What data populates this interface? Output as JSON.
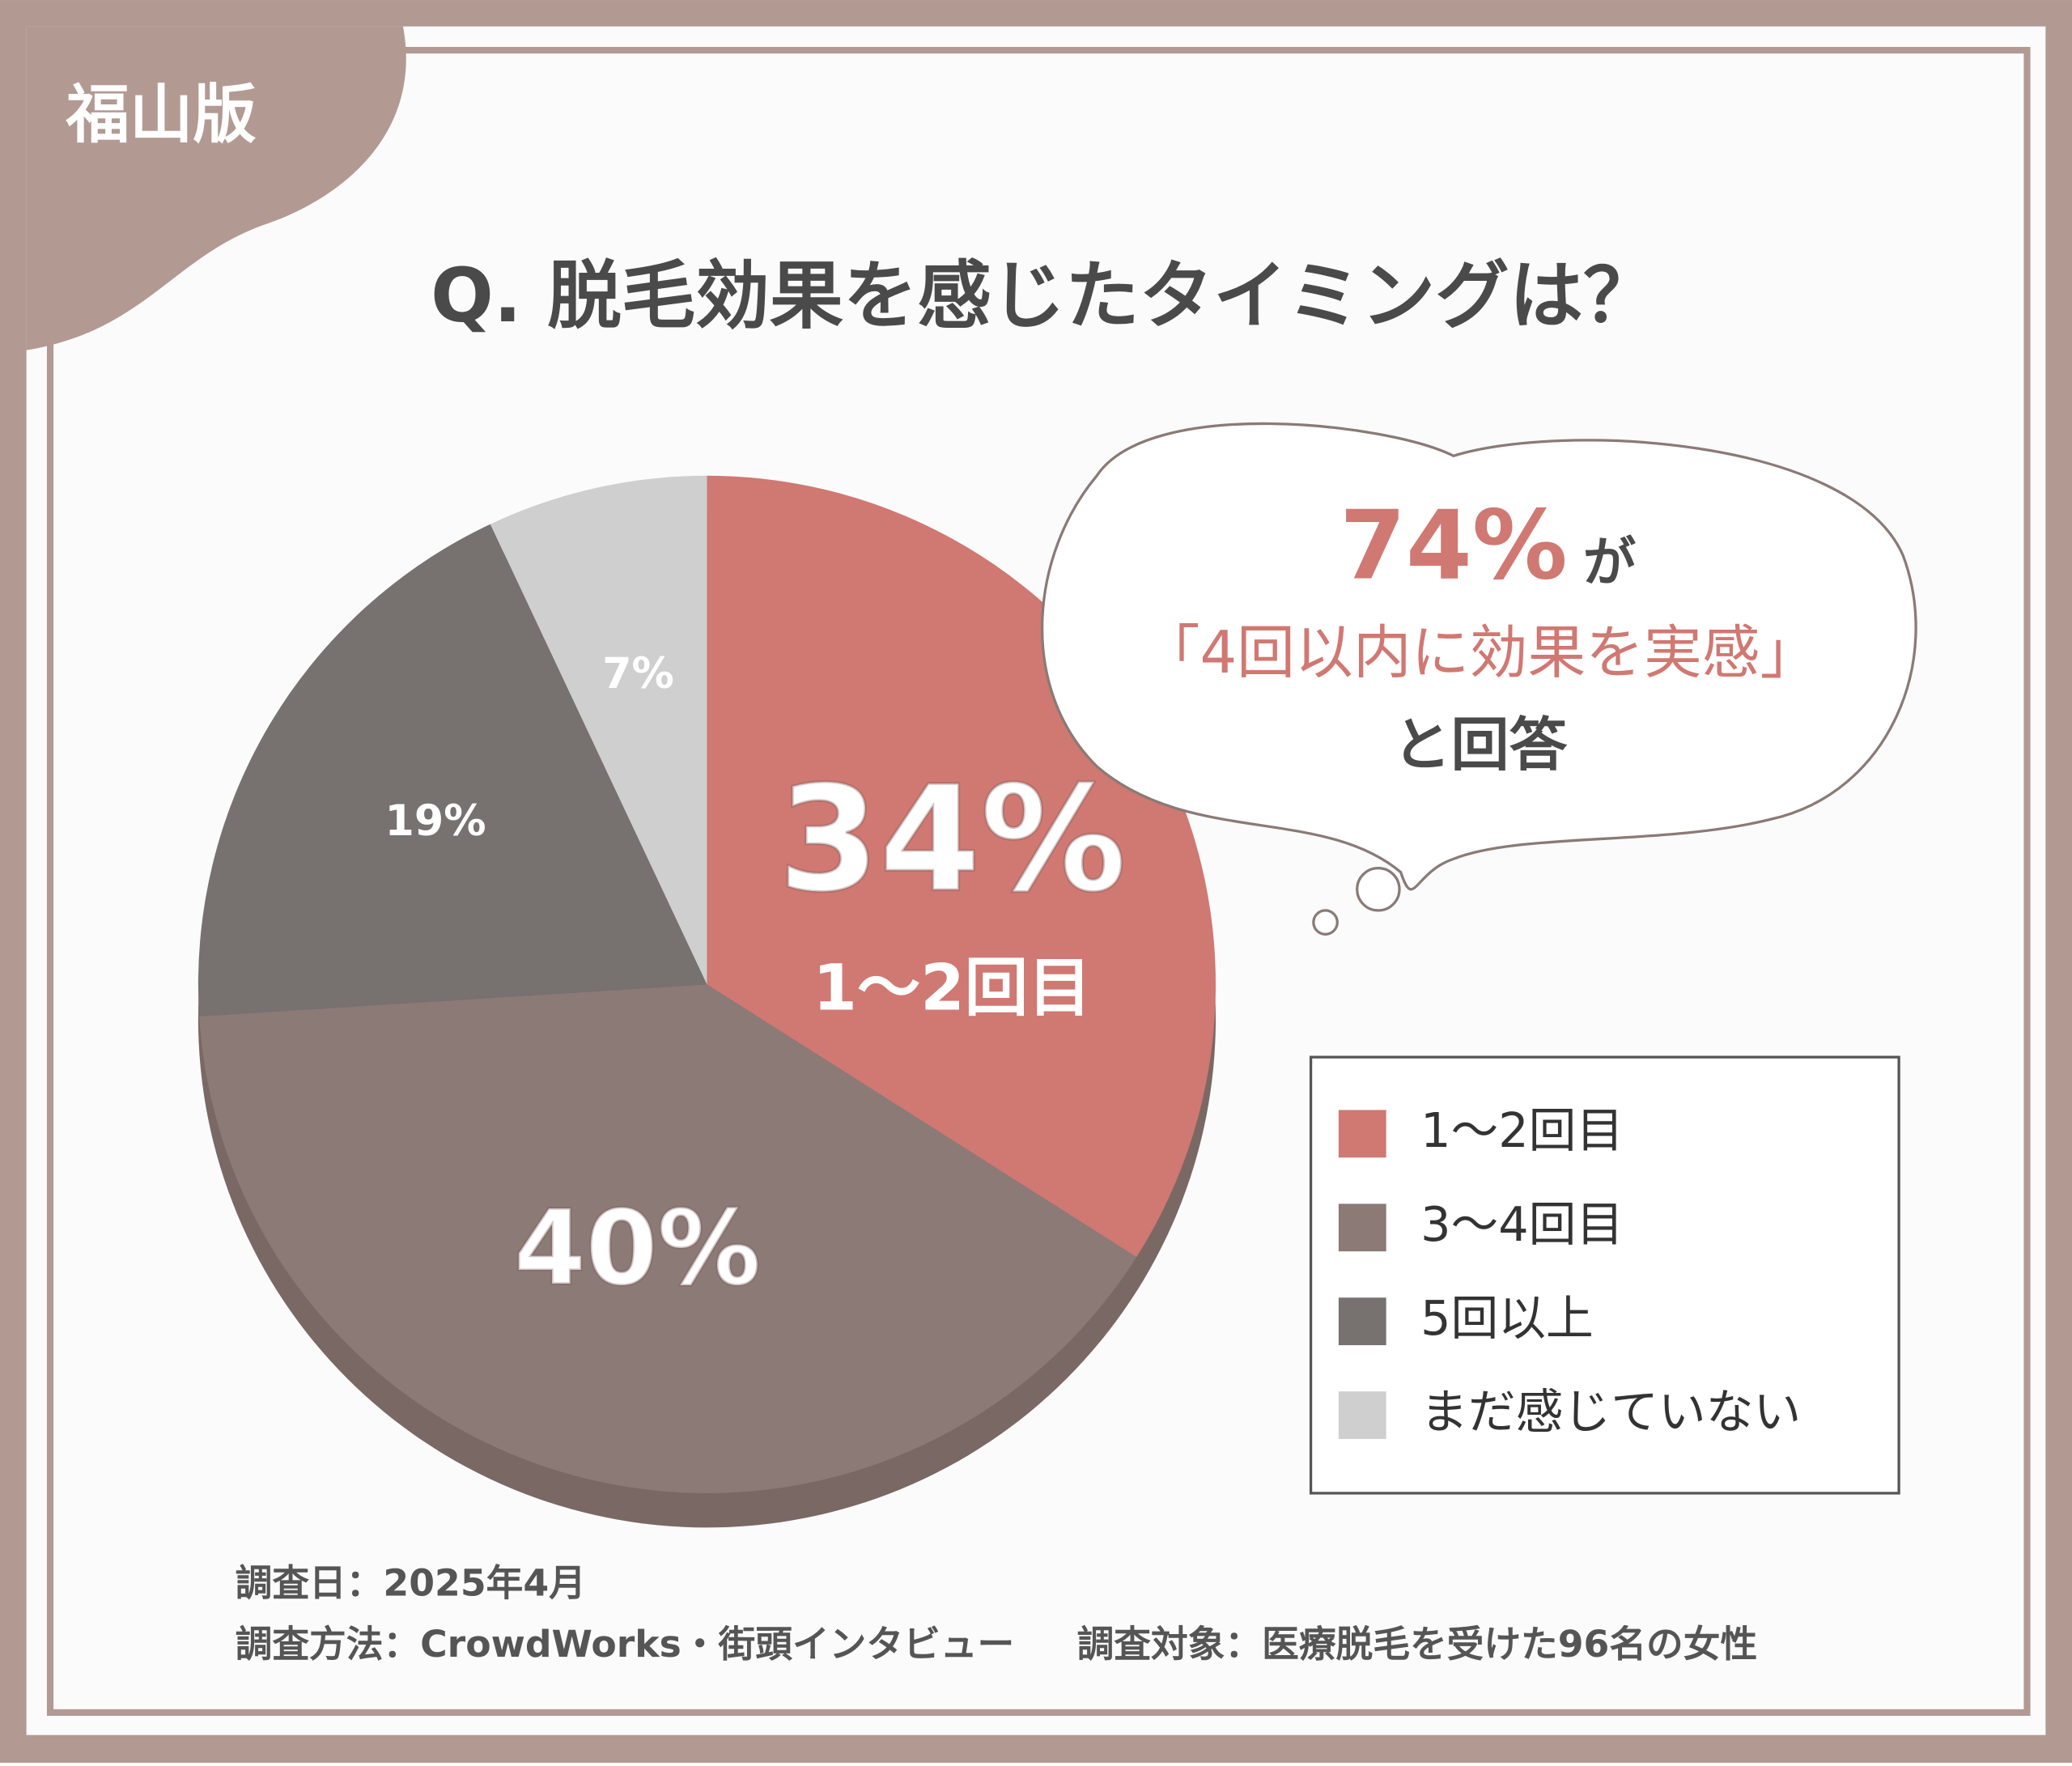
{
  "badge": "福山版",
  "chart_data": {
    "type": "pie",
    "title": "Q. 脱毛効果を感じたタイミングは？",
    "categories": [
      "1～2回目",
      "3～4回目",
      "5回以上",
      "まだ感じていない"
    ],
    "values": [
      34,
      40,
      19,
      7
    ],
    "value_labels": [
      "34%",
      "40%",
      "19%",
      "7%"
    ],
    "colors": [
      "#d07872",
      "#8c7a77",
      "#777170",
      "#cfcfcf"
    ],
    "legend": "lower right",
    "annotation": {
      "highlight": "74%",
      "particle": "が",
      "quote": "「4回以内に効果を実感」",
      "tail": "と回答"
    }
  },
  "footer": {
    "date": "調査日：2025年4月",
    "method": "調査方法：CrowdWorks・街頭インタビュー",
    "target": "調査対象：医療脱毛を受けた96名の女性"
  }
}
